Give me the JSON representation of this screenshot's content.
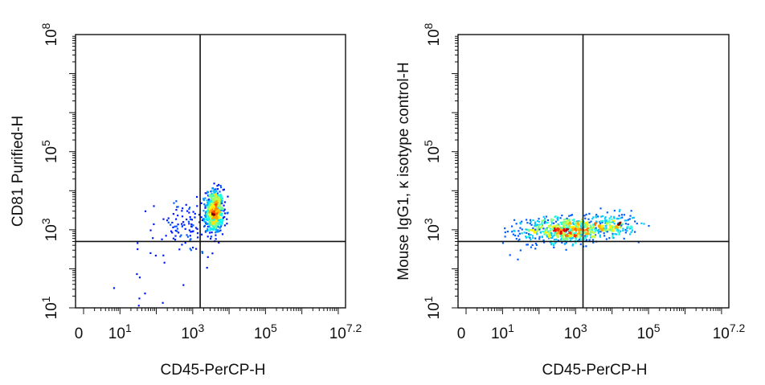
{
  "chart_data": [
    {
      "type": "scatter",
      "subtype": "flow-cytometry-density-dot-plot",
      "xlabel": "CD45-PerCP-H",
      "ylabel": "CD81 Purified-H",
      "x_scale": "log",
      "y_scale": "log",
      "x_ticks": [
        {
          "value": 0,
          "base": "0",
          "exp": ""
        },
        {
          "value": 10,
          "base": "10",
          "exp": "1"
        },
        {
          "value": 1000,
          "base": "10",
          "exp": "3"
        },
        {
          "value": 100000,
          "base": "10",
          "exp": "5"
        },
        {
          "value": 15848932,
          "base": "10",
          "exp": "7.2"
        }
      ],
      "y_ticks": [
        {
          "value": 10,
          "base": "10",
          "exp": "1"
        },
        {
          "value": 1000,
          "base": "10",
          "exp": "3"
        },
        {
          "value": 100000,
          "base": "10",
          "exp": "5"
        },
        {
          "value": 100000000,
          "base": "10",
          "exp": "8"
        }
      ],
      "gate_x": 1600,
      "gate_y": 500,
      "populations": [
        {
          "center_x": 4000,
          "center_y": 3000,
          "x_spread_log": 0.12,
          "y_spread_log": 0.28,
          "count": 650
        },
        {
          "center_x": 600,
          "center_y": 1200,
          "x_spread_log": 0.45,
          "y_spread_log": 0.35,
          "count": 110
        },
        {
          "center_x": 100,
          "center_y": 50,
          "x_spread_log": 0.5,
          "y_spread_log": 0.4,
          "count": 12
        }
      ]
    },
    {
      "type": "scatter",
      "subtype": "flow-cytometry-density-dot-plot",
      "xlabel": "CD45-PerCP-H",
      "ylabel": "Mouse IgG1, κ isotype control-H",
      "x_scale": "log",
      "y_scale": "log",
      "x_ticks": [
        {
          "value": 0,
          "base": "0",
          "exp": ""
        },
        {
          "value": 10,
          "base": "10",
          "exp": "1"
        },
        {
          "value": 1000,
          "base": "10",
          "exp": "3"
        },
        {
          "value": 100000,
          "base": "10",
          "exp": "5"
        },
        {
          "value": 15848932,
          "base": "10",
          "exp": "7.2"
        }
      ],
      "y_ticks": [
        {
          "value": 10,
          "base": "10",
          "exp": "1"
        },
        {
          "value": 1000,
          "base": "10",
          "exp": "3"
        },
        {
          "value": 100000,
          "base": "10",
          "exp": "5"
        },
        {
          "value": 100000000,
          "base": "10",
          "exp": "8"
        }
      ],
      "gate_x": 1600,
      "gate_y": 500,
      "populations": [
        {
          "center_x": 600,
          "center_y": 1000,
          "x_spread_log": 0.55,
          "y_spread_log": 0.16,
          "count": 600
        },
        {
          "center_x": 10000,
          "center_y": 1300,
          "x_spread_log": 0.35,
          "y_spread_log": 0.15,
          "count": 200
        },
        {
          "center_x": 100,
          "center_y": 800,
          "x_spread_log": 0.5,
          "y_spread_log": 0.25,
          "count": 60
        }
      ]
    }
  ]
}
